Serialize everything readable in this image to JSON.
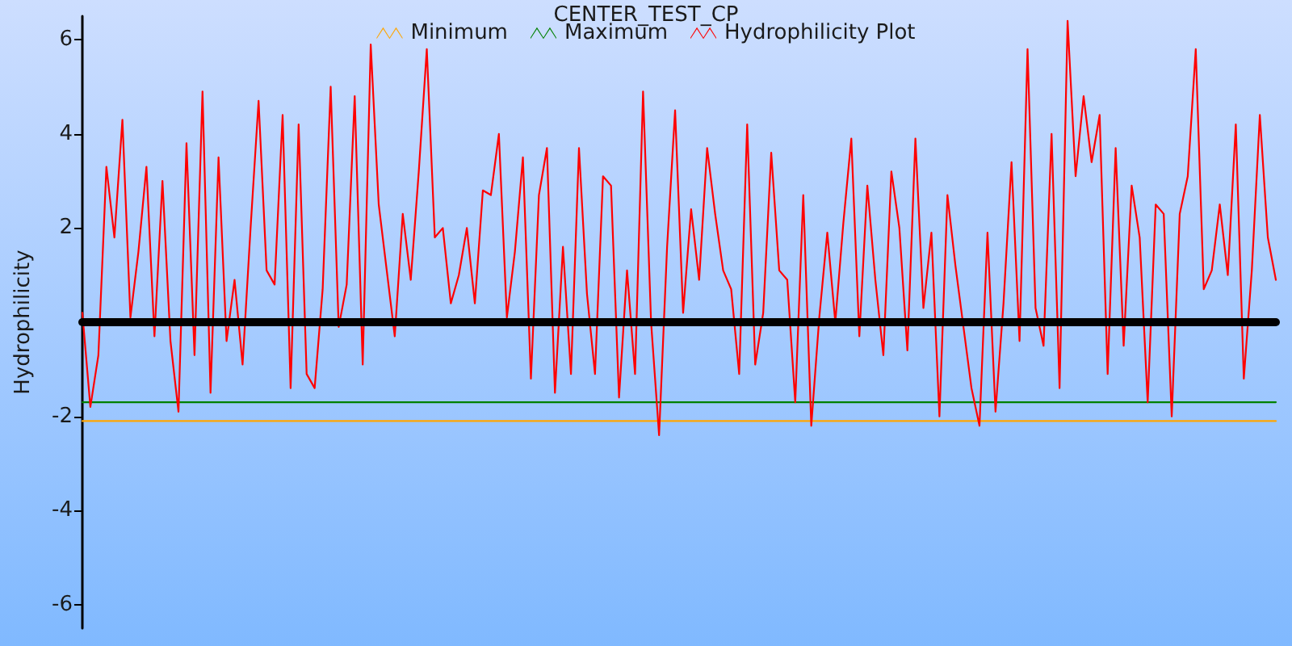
{
  "chart_data": {
    "type": "line",
    "title": "CENTER_TEST_CP",
    "ylabel": "Hydrophilicity",
    "categories": [
      null,
      null,
      null,
      null,
      null,
      null,
      null,
      null,
      null,
      null,
      null,
      null,
      null,
      null,
      null,
      null,
      null,
      null,
      null,
      null,
      null,
      null,
      null,
      null,
      null,
      null,
      null,
      null,
      null,
      null,
      null,
      null,
      null,
      null,
      null,
      null,
      null,
      null,
      null,
      null,
      null,
      null,
      null,
      null,
      null,
      null,
      null,
      null,
      null,
      null,
      null,
      null,
      null,
      null,
      null,
      null,
      null,
      null,
      null,
      null,
      null,
      null,
      null,
      null,
      null,
      null,
      null,
      null,
      null,
      null,
      null,
      null,
      null,
      null,
      null,
      null,
      null,
      null,
      null,
      null,
      null,
      null,
      null,
      null,
      null,
      null,
      null,
      null,
      null,
      null,
      null,
      null,
      null,
      null,
      null,
      null,
      null,
      null,
      null,
      null,
      null,
      null,
      null,
      null,
      null,
      null,
      null,
      null,
      null,
      null,
      null,
      null,
      null,
      null,
      null,
      null,
      null,
      null,
      null,
      null,
      null,
      null,
      null,
      null,
      null,
      null,
      null,
      null,
      null,
      null,
      null,
      null,
      null,
      null,
      null,
      null,
      null,
      null,
      null,
      null,
      null,
      null,
      null,
      null,
      null,
      null,
      null,
      null,
      null,
      null
    ],
    "series": [
      {
        "name": "Minimum",
        "color": "#ffa500",
        "values": [
          -2.1,
          -2.1,
          -2.1,
          -2.1,
          -2.1,
          -2.1,
          -2.1,
          -2.1,
          -2.1,
          -2.1,
          -2.1,
          -2.1,
          -2.1,
          -2.1,
          -2.1,
          -2.1,
          -2.1,
          -2.1,
          -2.1,
          -2.1,
          -2.1,
          -2.1,
          -2.1,
          -2.1,
          -2.1,
          -2.1,
          -2.1,
          -2.1,
          -2.1,
          -2.1,
          -2.1,
          -2.1,
          -2.1,
          -2.1,
          -2.1,
          -2.1,
          -2.1,
          -2.1,
          -2.1,
          -2.1,
          -2.1,
          -2.1,
          -2.1,
          -2.1,
          -2.1,
          -2.1,
          -2.1,
          -2.1,
          -2.1,
          -2.1,
          -2.1,
          -2.1,
          -2.1,
          -2.1,
          -2.1,
          -2.1,
          -2.1,
          -2.1,
          -2.1,
          -2.1,
          -2.1,
          -2.1,
          -2.1,
          -2.1,
          -2.1,
          -2.1,
          -2.1,
          -2.1,
          -2.1,
          -2.1,
          -2.1,
          -2.1,
          -2.1,
          -2.1,
          -2.1,
          -2.1,
          -2.1,
          -2.1,
          -2.1,
          -2.1,
          -2.1,
          -2.1,
          -2.1,
          -2.1,
          -2.1,
          -2.1,
          -2.1,
          -2.1,
          -2.1,
          -2.1,
          -2.1,
          -2.1,
          -2.1,
          -2.1,
          -2.1,
          -2.1,
          -2.1,
          -2.1,
          -2.1,
          -2.1,
          -2.1,
          -2.1,
          -2.1,
          -2.1,
          -2.1,
          -2.1,
          -2.1,
          -2.1,
          -2.1,
          -2.1,
          -2.1,
          -2.1,
          -2.1,
          -2.1,
          -2.1,
          -2.1,
          -2.1,
          -2.1,
          -2.1,
          -2.1,
          -2.1,
          -2.1,
          -2.1,
          -2.1,
          -2.1,
          -2.1,
          -2.1,
          -2.1,
          -2.1,
          -2.1,
          -2.1,
          -2.1,
          -2.1,
          -2.1,
          -2.1,
          -2.1,
          -2.1,
          -2.1,
          -2.1,
          -2.1,
          -2.1,
          -2.1,
          -2.1,
          -2.1,
          -2.1,
          -2.1,
          -2.1,
          -2.1,
          -2.1,
          -2.1
        ]
      },
      {
        "name": "Maximum",
        "color": "#008000",
        "values": [
          -1.7,
          -1.7,
          -1.7,
          -1.7,
          -1.7,
          -1.7,
          -1.7,
          -1.7,
          -1.7,
          -1.7,
          -1.7,
          -1.7,
          -1.7,
          -1.7,
          -1.7,
          -1.7,
          -1.7,
          -1.7,
          -1.7,
          -1.7,
          -1.7,
          -1.7,
          -1.7,
          -1.7,
          -1.7,
          -1.7,
          -1.7,
          -1.7,
          -1.7,
          -1.7,
          -1.7,
          -1.7,
          -1.7,
          -1.7,
          -1.7,
          -1.7,
          -1.7,
          -1.7,
          -1.7,
          -1.7,
          -1.7,
          -1.7,
          -1.7,
          -1.7,
          -1.7,
          -1.7,
          -1.7,
          -1.7,
          -1.7,
          -1.7,
          -1.7,
          -1.7,
          -1.7,
          -1.7,
          -1.7,
          -1.7,
          -1.7,
          -1.7,
          -1.7,
          -1.7,
          -1.7,
          -1.7,
          -1.7,
          -1.7,
          -1.7,
          -1.7,
          -1.7,
          -1.7,
          -1.7,
          -1.7,
          -1.7,
          -1.7,
          -1.7,
          -1.7,
          -1.7,
          -1.7,
          -1.7,
          -1.7,
          -1.7,
          -1.7,
          -1.7,
          -1.7,
          -1.7,
          -1.7,
          -1.7,
          -1.7,
          -1.7,
          -1.7,
          -1.7,
          -1.7,
          -1.7,
          -1.7,
          -1.7,
          -1.7,
          -1.7,
          -1.7,
          -1.7,
          -1.7,
          -1.7,
          -1.7,
          -1.7,
          -1.7,
          -1.7,
          -1.7,
          -1.7,
          -1.7,
          -1.7,
          -1.7,
          -1.7,
          -1.7,
          -1.7,
          -1.7,
          -1.7,
          -1.7,
          -1.7,
          -1.7,
          -1.7,
          -1.7,
          -1.7,
          -1.7,
          -1.7,
          -1.7,
          -1.7,
          -1.7,
          -1.7,
          -1.7,
          -1.7,
          -1.7,
          -1.7,
          -1.7,
          -1.7,
          -1.7,
          -1.7,
          -1.7,
          -1.7,
          -1.7,
          -1.7,
          -1.7,
          -1.7,
          -1.7,
          -1.7,
          -1.7,
          -1.7,
          -1.7,
          -1.7,
          -1.7,
          -1.7,
          -1.7,
          -1.7,
          -1.7
        ]
      },
      {
        "name": "Hydrophilicity Plot",
        "color": "#ff0000",
        "values": [
          0.2,
          -1.8,
          -0.7,
          3.3,
          1.8,
          4.3,
          0.1,
          1.5,
          3.3,
          -0.3,
          3.0,
          -0.4,
          -1.9,
          3.8,
          -0.7,
          4.9,
          -1.5,
          3.5,
          -0.4,
          0.9,
          -0.9,
          2.0,
          4.7,
          1.1,
          0.8,
          4.4,
          -1.4,
          4.2,
          -1.1,
          -1.4,
          0.7,
          5.0,
          -0.1,
          0.8,
          4.8,
          -0.9,
          5.9,
          2.5,
          1.1,
          -0.3,
          2.3,
          0.9,
          3.2,
          5.8,
          1.8,
          2.0,
          0.4,
          1.0,
          2.0,
          0.4,
          2.8,
          2.7,
          4.0,
          0.1,
          1.5,
          3.5,
          -1.2,
          2.7,
          3.7,
          -1.5,
          1.6,
          -1.1,
          3.7,
          0.6,
          -1.1,
          3.1,
          2.9,
          -1.6,
          1.1,
          -1.1,
          4.9,
          0.0,
          -2.4,
          1.6,
          4.5,
          0.2,
          2.4,
          0.9,
          3.7,
          2.3,
          1.1,
          0.7,
          -1.1,
          4.2,
          -0.9,
          0.2,
          3.6,
          1.1,
          0.9,
          -1.7,
          2.7,
          -2.2,
          0.1,
          1.9,
          0.0,
          2.1,
          3.9,
          -0.3,
          2.9,
          0.9,
          -0.7,
          3.2,
          2.0,
          -0.6,
          3.9,
          0.3,
          1.9,
          -2.0,
          2.7,
          1.2,
          -0.1,
          -1.4,
          -2.2,
          1.9,
          -1.9,
          0.4,
          3.4,
          -0.4,
          5.8,
          0.3,
          -0.5,
          4.0,
          -1.4,
          6.4,
          3.1,
          4.8,
          3.4,
          4.4,
          -1.1,
          3.7,
          -0.5,
          2.9,
          1.8,
          -1.7,
          2.5,
          2.3,
          -2.0,
          2.3,
          3.1,
          5.8,
          0.7,
          1.1,
          2.5,
          1.0,
          4.2,
          -1.2,
          1.1,
          4.4,
          1.8,
          0.9
        ]
      }
    ],
    "ylim": [
      -6.5,
      6.5
    ],
    "yticks": [
      -6,
      -4,
      -2,
      2,
      4,
      6
    ],
    "tick_labels": "y",
    "legend": "top",
    "line_style": "solid"
  }
}
